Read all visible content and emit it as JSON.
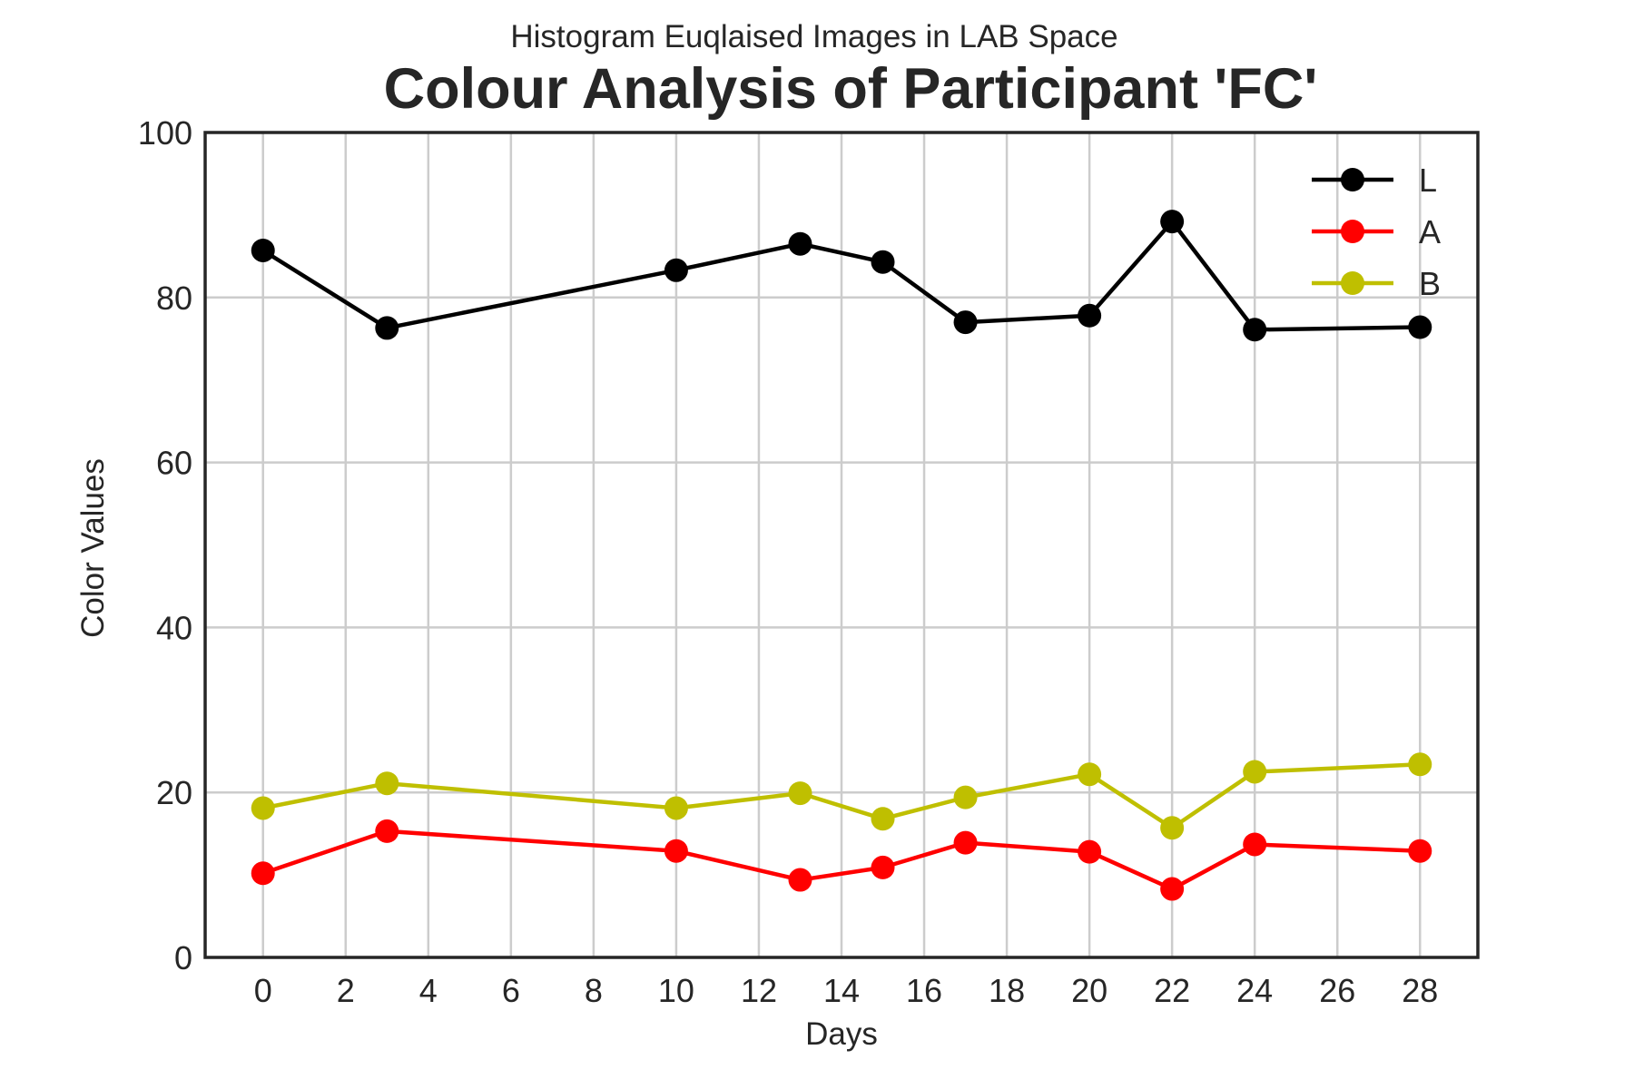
{
  "chart_data": {
    "type": "line",
    "subtitle": "Histogram Euqlaised Images in LAB Space",
    "title": "Colour Analysis of Participant 'FC'",
    "xlabel": "Days",
    "ylabel": "Color Values",
    "xlim": [
      -1.4,
      29.4
    ],
    "ylim": [
      0,
      100
    ],
    "x_ticks": [
      0,
      2,
      4,
      6,
      8,
      10,
      12,
      14,
      16,
      18,
      20,
      22,
      24,
      26,
      28
    ],
    "y_ticks": [
      0,
      20,
      40,
      60,
      80,
      100
    ],
    "x_tick_labels": [
      "0",
      "2",
      "4",
      "6",
      "8",
      "10",
      "12",
      "14",
      "16",
      "18",
      "20",
      "22",
      "24",
      "26",
      "28"
    ],
    "y_tick_labels": [
      "0",
      "20",
      "40",
      "60",
      "80",
      "100"
    ],
    "grid": true,
    "legend_position": "top-right",
    "x": [
      0,
      3,
      10,
      13,
      15,
      17,
      20,
      22,
      24,
      28
    ],
    "series": [
      {
        "name": "L",
        "color": "#000000",
        "values": [
          85.7,
          76.3,
          83.3,
          86.5,
          84.3,
          77.0,
          77.8,
          89.2,
          76.1,
          76.4
        ]
      },
      {
        "name": "A",
        "color": "#ff0000",
        "values": [
          10.2,
          15.3,
          12.9,
          9.4,
          10.9,
          13.9,
          12.8,
          8.3,
          13.7,
          12.9
        ]
      },
      {
        "name": "B",
        "color": "#bfbf00",
        "values": [
          18.1,
          21.1,
          18.1,
          19.9,
          16.8,
          19.4,
          22.2,
          15.7,
          22.5,
          23.4
        ]
      }
    ]
  }
}
